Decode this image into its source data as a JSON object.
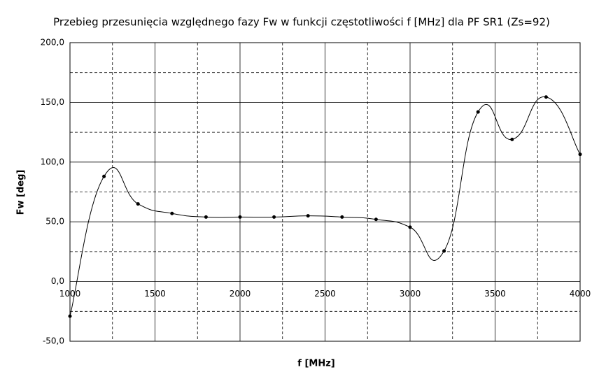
{
  "chart_data": {
    "type": "line",
    "title": "Przebieg przesunięcia względnego fazy Fw w funkcji częstotliwości f [MHz] dla PF SR1 (Zs=92)",
    "x_label": "f [MHz]",
    "y_label": "Fw [deg]",
    "x": [
      1000,
      1200,
      1400,
      1600,
      1800,
      2000,
      2200,
      2400,
      2600,
      2800,
      3000,
      3200,
      3400,
      3600,
      3800,
      4000
    ],
    "series": [
      {
        "color": "#000000",
        "values": [
          -29,
          88,
          65,
          57,
          54,
          54,
          54,
          55,
          54,
          52,
          45.5,
          25.6,
          142,
          119,
          154.5,
          106.5
        ]
      }
    ],
    "xlim": [
      1000,
      4000
    ],
    "xticks": [
      1000,
      1500,
      2000,
      2500,
      3000,
      3500,
      4000
    ],
    "x_minor_ticks": [
      1250,
      1750,
      2250,
      2750,
      3250,
      3750
    ],
    "ylim": [
      -50,
      200
    ],
    "yticks": [
      {
        "value": -50,
        "label": "-50,0"
      },
      {
        "value": 0,
        "label": "0,0"
      },
      {
        "value": 50,
        "label": "50,0"
      },
      {
        "value": 100,
        "label": "100,0"
      },
      {
        "value": 150,
        "label": "150,0"
      },
      {
        "value": 200,
        "label": "200,0"
      }
    ],
    "y_minor_ticks": [
      -25,
      25,
      75,
      125,
      175
    ],
    "grid": true
  }
}
